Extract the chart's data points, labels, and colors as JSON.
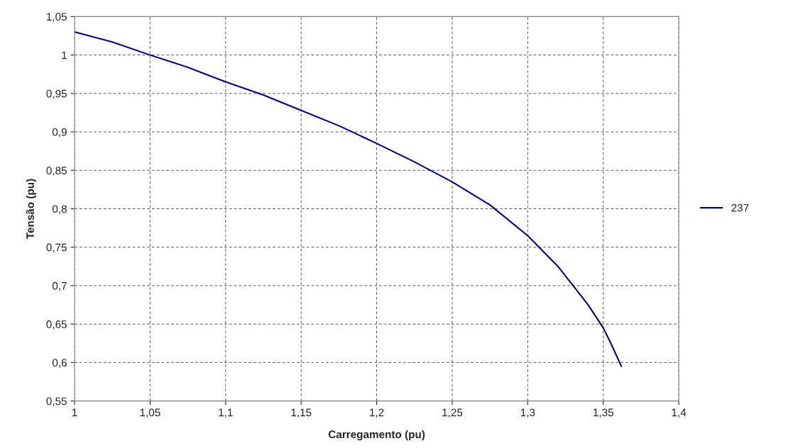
{
  "chart_data": {
    "type": "line",
    "xlabel": "Carregamento (pu)",
    "ylabel": "Tensão (pu)",
    "series": [
      {
        "name": "237",
        "color": "#000080",
        "x": [
          1,
          1.025,
          1.05,
          1.075,
          1.1,
          1.125,
          1.15,
          1.175,
          1.2,
          1.225,
          1.25,
          1.275,
          1.3,
          1.31,
          1.32,
          1.33,
          1.34,
          1.35,
          1.355,
          1.362
        ],
        "values": [
          1.03,
          1.017,
          1.0,
          0.984,
          0.965,
          0.948,
          0.928,
          0.908,
          0.885,
          0.861,
          0.835,
          0.805,
          0.765,
          0.745,
          0.725,
          0.7,
          0.675,
          0.645,
          0.625,
          0.595
        ]
      }
    ],
    "xlim": [
      1,
      1.4
    ],
    "ylim": [
      0.55,
      1.05
    ],
    "xticks": [
      1,
      {
        "value": 1.05,
        "label": "1,05"
      },
      {
        "value": 1.1,
        "label": "1,1"
      },
      {
        "value": 1.15,
        "label": "1,15"
      },
      {
        "value": 1.2,
        "label": "1,2"
      },
      {
        "value": 1.25,
        "label": "1,25"
      },
      {
        "value": 1.3,
        "label": "1,3"
      },
      {
        "value": 1.35,
        "label": "1,35"
      },
      {
        "value": 1.4,
        "label": "1,4"
      }
    ],
    "yticks": [
      {
        "value": 0.55,
        "label": "0,55"
      },
      {
        "value": 0.6,
        "label": "0,6"
      },
      {
        "value": 0.65,
        "label": "0,65"
      },
      {
        "value": 0.7,
        "label": "0,7"
      },
      {
        "value": 0.75,
        "label": "0,75"
      },
      {
        "value": 0.8,
        "label": "0,8"
      },
      {
        "value": 0.85,
        "label": "0,85"
      },
      {
        "value": 0.9,
        "label": "0,9"
      },
      {
        "value": 0.95,
        "label": "0,95"
      },
      1,
      {
        "value": 1.05,
        "label": "1,05"
      }
    ],
    "grid": true,
    "legend": "right",
    "marker": "none",
    "line_style": "solid"
  }
}
